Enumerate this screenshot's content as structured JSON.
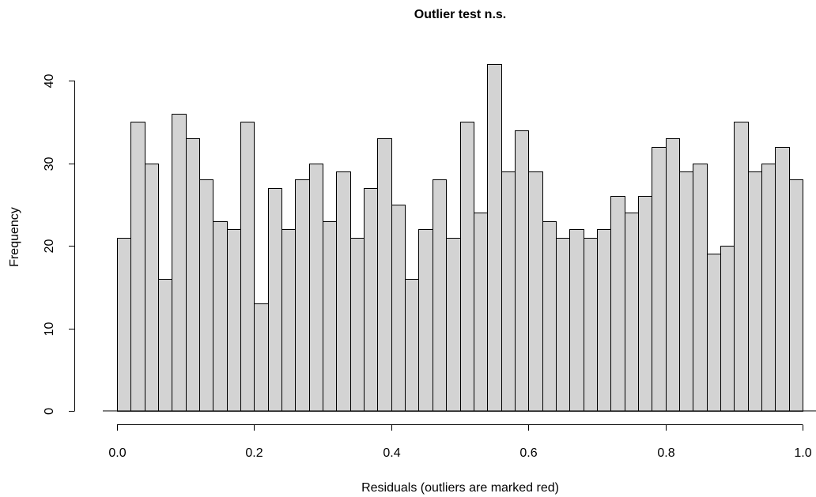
{
  "chart_data": {
    "type": "bar",
    "title": "Outlier test n.s.",
    "xlabel": "Residuals (outliers are marked red)",
    "ylabel": "Frequency",
    "bin_start": 0.0,
    "bin_width": 0.02,
    "values": [
      21,
      35,
      30,
      16,
      36,
      33,
      28,
      23,
      22,
      35,
      13,
      27,
      22,
      28,
      30,
      23,
      29,
      21,
      27,
      33,
      25,
      16,
      22,
      28,
      21,
      35,
      24,
      42,
      29,
      34,
      29,
      23,
      21,
      22,
      21,
      22,
      26,
      24,
      26,
      32,
      33,
      29,
      30,
      19,
      20,
      35,
      29,
      30,
      32,
      28
    ],
    "xlim": [
      0.0,
      1.0
    ],
    "ylim": [
      0,
      40
    ],
    "x_ticks": [
      "0.0",
      "0.2",
      "0.4",
      "0.6",
      "0.8",
      "1.0"
    ],
    "y_ticks": [
      "0",
      "10",
      "20",
      "30",
      "40"
    ],
    "bar_fill": "#d3d3d3",
    "bar_stroke": "#000000",
    "grid": false,
    "legend": "none"
  }
}
